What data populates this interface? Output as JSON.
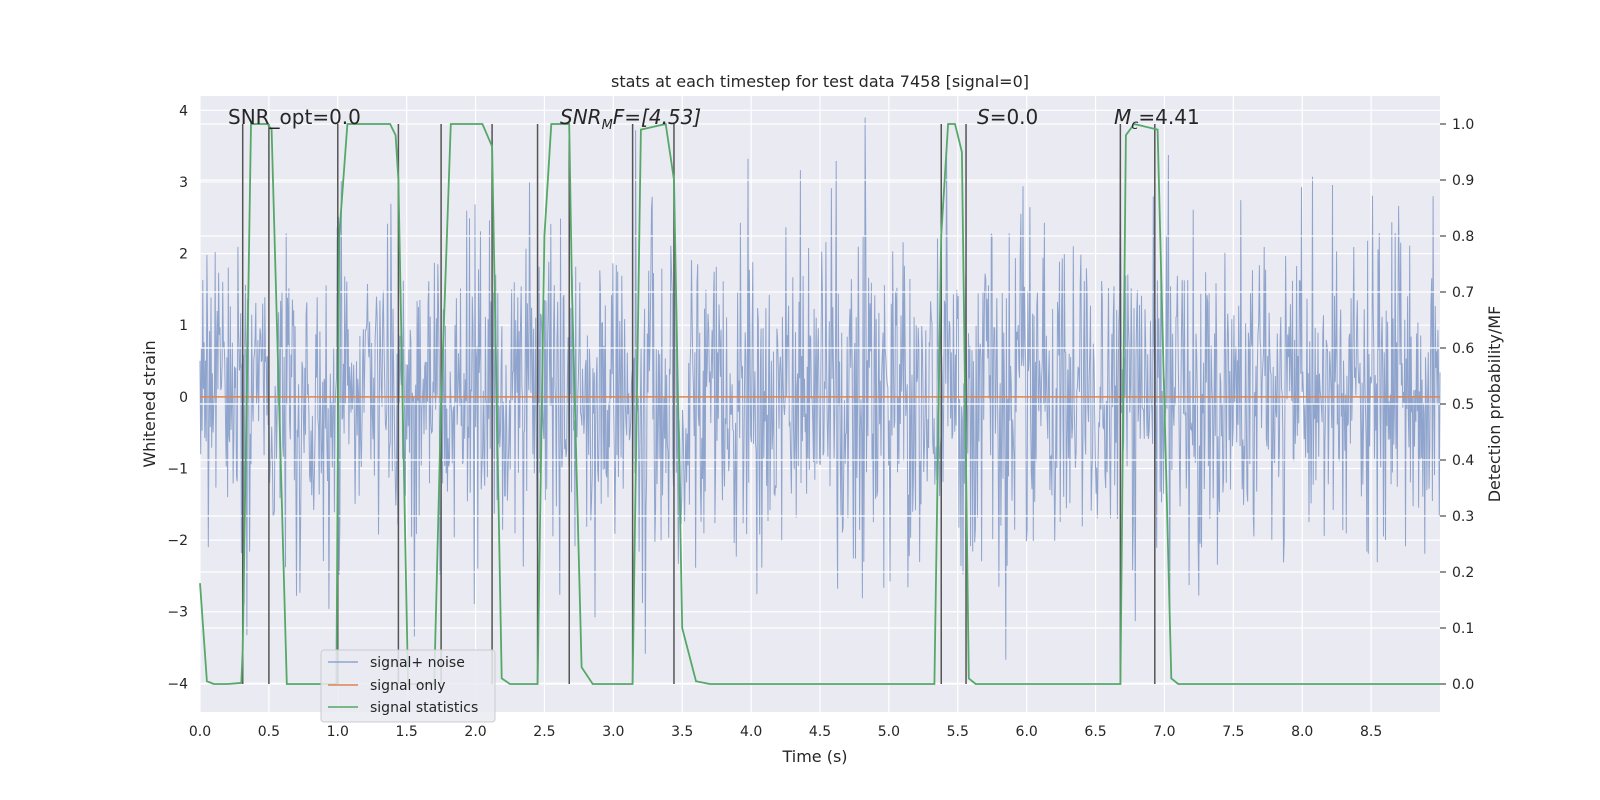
{
  "chart_data": {
    "type": "line",
    "title": "stats at each timestep for test data 7458 [signal=0]",
    "xlabel": "Time (s)",
    "ylabel": "Whitened strain",
    "y2label": "Detection probability/MF",
    "xlim": [
      0.0,
      9.0
    ],
    "ylim": [
      -4.4,
      4.2
    ],
    "y2lim": [
      -0.05,
      1.05
    ],
    "xticks": [
      "0.0",
      "0.5",
      "1.0",
      "1.5",
      "2.0",
      "2.5",
      "3.0",
      "3.5",
      "4.0",
      "4.5",
      "5.0",
      "5.5",
      "6.0",
      "6.5",
      "7.0",
      "7.5",
      "8.0",
      "8.5"
    ],
    "yticks": [
      "4",
      "3",
      "2",
      "1",
      "0",
      "−1",
      "−2",
      "−3",
      "−4"
    ],
    "y2ticks": [
      "1.0",
      "0.9",
      "0.8",
      "0.7",
      "0.6",
      "0.5",
      "0.4",
      "0.3",
      "0.2",
      "0.1",
      "0.0"
    ],
    "annotations": {
      "snr_opt": "SNR_opt=0.0",
      "snr_mf_main": "SNR",
      "snr_mf_sub": "M",
      "snr_mf_rest": "F=[4.53]",
      "s_main": "S",
      "s_rest": "=0.0",
      "mc_main": "M",
      "mc_sub": "c",
      "mc_rest": "=4.41"
    },
    "legend": {
      "placement": "lower-left",
      "entries": [
        "signal+ noise",
        "signal only",
        "signal statistics"
      ]
    },
    "colors": {
      "noise": "#8fa4cc",
      "signal": "#dd8452",
      "stat": "#55a868",
      "vline": "#555555",
      "background": "#eaeaf2",
      "grid": "#ffffff"
    },
    "grid": true,
    "series": [
      {
        "name": "signal statistics",
        "axis": "right",
        "x": [
          0.0,
          0.05,
          0.1,
          0.2,
          0.3,
          0.31,
          0.37,
          0.49,
          0.52,
          0.63,
          0.7,
          0.9,
          0.99,
          1.01,
          1.07,
          1.38,
          1.42,
          1.44,
          1.51,
          1.6,
          1.7,
          1.75,
          1.82,
          2.05,
          2.12,
          2.19,
          2.25,
          2.45,
          2.5,
          2.55,
          2.68,
          2.7,
          2.77,
          2.85,
          3.0,
          3.14,
          3.2,
          3.38,
          3.44,
          3.5,
          3.6,
          3.7,
          4.0,
          4.5,
          5.0,
          5.33,
          5.38,
          5.43,
          5.48,
          5.53,
          5.58,
          5.63,
          5.7,
          6.0,
          6.5,
          6.68,
          6.72,
          6.78,
          6.95,
          7.0,
          7.05,
          7.1,
          7.5,
          8.0,
          8.5,
          9.0
        ],
        "y": [
          0.18,
          0.005,
          0.0,
          0.0,
          0.002,
          0.06,
          1.0,
          1.0,
          0.99,
          0.0,
          0.0,
          0.0,
          0.0,
          0.8,
          1.0,
          1.0,
          0.98,
          0.9,
          0.0,
          0.0,
          0.0,
          0.5,
          1.0,
          1.0,
          0.96,
          0.01,
          0.0,
          0.0,
          0.8,
          1.0,
          1.0,
          0.7,
          0.03,
          0.0,
          0.0,
          0.0,
          0.99,
          1.0,
          0.9,
          0.1,
          0.005,
          0.0,
          0.0,
          0.0,
          0.0,
          0.0,
          0.8,
          1.0,
          1.0,
          0.95,
          0.01,
          0.0,
          0.0,
          0.0,
          0.0,
          0.0,
          0.98,
          1.0,
          0.99,
          0.5,
          0.01,
          0.0,
          0.0,
          0.0,
          0.0,
          0.0
        ]
      },
      {
        "name": "signal only",
        "axis": "left",
        "x": [
          0.0,
          9.0
        ],
        "y": [
          0.0,
          0.0
        ]
      }
    ],
    "vertical_lines_x": [
      0.31,
      0.5,
      1.0,
      1.44,
      1.75,
      2.12,
      2.45,
      2.68,
      3.14,
      3.44,
      5.38,
      5.56,
      6.68,
      6.93
    ]
  }
}
